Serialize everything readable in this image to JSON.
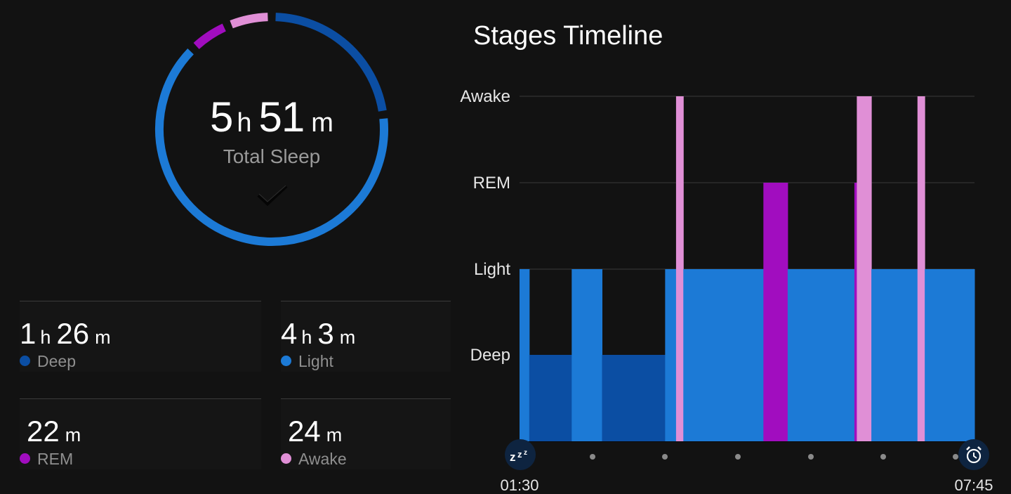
{
  "summary": {
    "total_hours": "5",
    "hours_unit": "h",
    "total_minutes": "51",
    "minutes_unit": "m",
    "label": "Total Sleep"
  },
  "ring_segments_minutes": [
    {
      "stage": "deep",
      "minutes": 86,
      "color": "#0b4ea3"
    },
    {
      "stage": "light",
      "minutes": 243,
      "color": "#1c7ad6"
    },
    {
      "stage": "rem",
      "minutes": 22,
      "color": "#a10dbf"
    },
    {
      "stage": "awake",
      "minutes": 24,
      "color": "#e08fd6"
    }
  ],
  "stats": [
    {
      "h": "1",
      "h_unit": "h",
      "m": "26",
      "m_unit": "m",
      "label": "Deep",
      "color": "#0b4ea3"
    },
    {
      "h": "4",
      "h_unit": "h",
      "m": "3",
      "m_unit": "m",
      "label": "Light",
      "color": "#1c7ad6"
    },
    {
      "h": "",
      "h_unit": "",
      "m": "22",
      "m_unit": "m",
      "label": "REM",
      "color": "#a10dbf"
    },
    {
      "h": "",
      "h_unit": "",
      "m": "24",
      "m_unit": "m",
      "label": "Awake",
      "color": "#e08fd6"
    }
  ],
  "timeline": {
    "title": "Stages Timeline",
    "stage_labels": [
      "Awake",
      "REM",
      "Light",
      "Deep"
    ],
    "start_time": "01:30",
    "end_time": "07:45",
    "start_icon": "sleep-zzz-icon",
    "end_icon": "alarm-clock-icon",
    "colors": {
      "deep": "#0b4ea3",
      "light": "#1c7ad6",
      "rem": "#a10dbf",
      "awake": "#e08fd6"
    }
  },
  "chart_data": {
    "type": "bar",
    "title": "Stages Timeline",
    "categories": [
      "Awake",
      "REM",
      "Light",
      "Deep"
    ],
    "x_range": [
      "01:30",
      "07:45"
    ],
    "x_unit": "minutes from start (0 = 01:30, 375 = 07:45)",
    "segments": [
      {
        "start": 0,
        "end": 8,
        "stage": "Light"
      },
      {
        "start": 8,
        "end": 43,
        "stage": "Deep"
      },
      {
        "start": 43,
        "end": 68,
        "stage": "Light"
      },
      {
        "start": 68,
        "end": 120,
        "stage": "Deep"
      },
      {
        "start": 120,
        "end": 129,
        "stage": "Light"
      },
      {
        "start": 129,
        "end": 135,
        "stage": "Awake"
      },
      {
        "start": 135,
        "end": 201,
        "stage": "Light"
      },
      {
        "start": 201,
        "end": 221,
        "stage": "REM"
      },
      {
        "start": 221,
        "end": 276,
        "stage": "Light"
      },
      {
        "start": 276,
        "end": 278,
        "stage": "REM"
      },
      {
        "start": 278,
        "end": 290,
        "stage": "Awake"
      },
      {
        "start": 290,
        "end": 328,
        "stage": "Light"
      },
      {
        "start": 328,
        "end": 334,
        "stage": "Awake"
      },
      {
        "start": 334,
        "end": 375,
        "stage": "Light"
      }
    ]
  }
}
